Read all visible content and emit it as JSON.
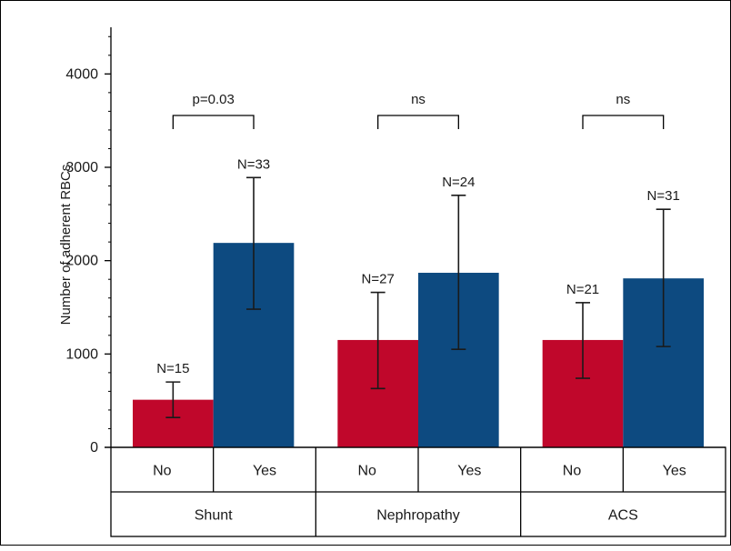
{
  "chart_data": {
    "type": "bar",
    "ylabel": "Number of adherent RBCs",
    "ylim": [
      0,
      4500
    ],
    "yticks": [
      0,
      1000,
      2000,
      3000,
      4000
    ],
    "series_colors": {
      "No": "#c0072b",
      "Yes": "#0d4a80"
    },
    "groups": [
      {
        "name": "Shunt",
        "significance": "p=0.03",
        "bars": [
          {
            "category": "No",
            "value": 510,
            "err_low": 320,
            "err_high": 700,
            "n_label": "N=15"
          },
          {
            "category": "Yes",
            "value": 2190,
            "err_low": 1480,
            "err_high": 2890,
            "n_label": "N=33"
          }
        ]
      },
      {
        "name": "Nephropathy",
        "significance": "ns",
        "bars": [
          {
            "category": "No",
            "value": 1150,
            "err_low": 630,
            "err_high": 1660,
            "n_label": "N=27"
          },
          {
            "category": "Yes",
            "value": 1870,
            "err_low": 1050,
            "err_high": 2700,
            "n_label": "N=24"
          }
        ]
      },
      {
        "name": "ACS",
        "significance": "ns",
        "bars": [
          {
            "category": "No",
            "value": 1150,
            "err_low": 740,
            "err_high": 1550,
            "n_label": "N=21"
          },
          {
            "category": "Yes",
            "value": 1810,
            "err_low": 1080,
            "err_high": 2550,
            "n_label": "N=31"
          }
        ]
      }
    ]
  }
}
